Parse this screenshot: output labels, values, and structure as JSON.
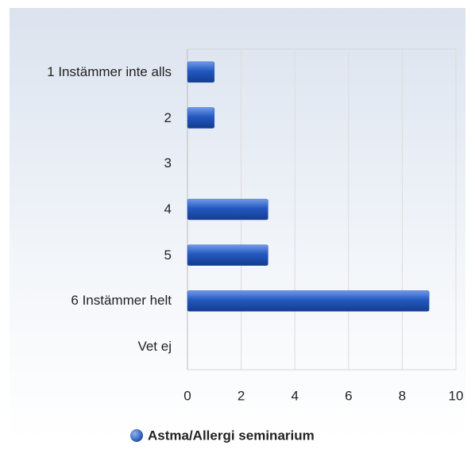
{
  "chart_data": {
    "type": "bar",
    "orientation": "horizontal",
    "categories": [
      "1 Instämmer inte alls",
      "2",
      "3",
      "4",
      "5",
      "6 Instämmer helt",
      "Vet ej"
    ],
    "series": [
      {
        "name": "Astma/Allergi seminarium",
        "color": "#2458c0",
        "values": [
          1,
          1,
          0,
          3,
          3,
          9,
          0
        ]
      }
    ],
    "xlim": [
      0,
      10
    ],
    "xticks": [
      0,
      2,
      4,
      6,
      8,
      10
    ],
    "grid": true,
    "legend": "bottom"
  }
}
